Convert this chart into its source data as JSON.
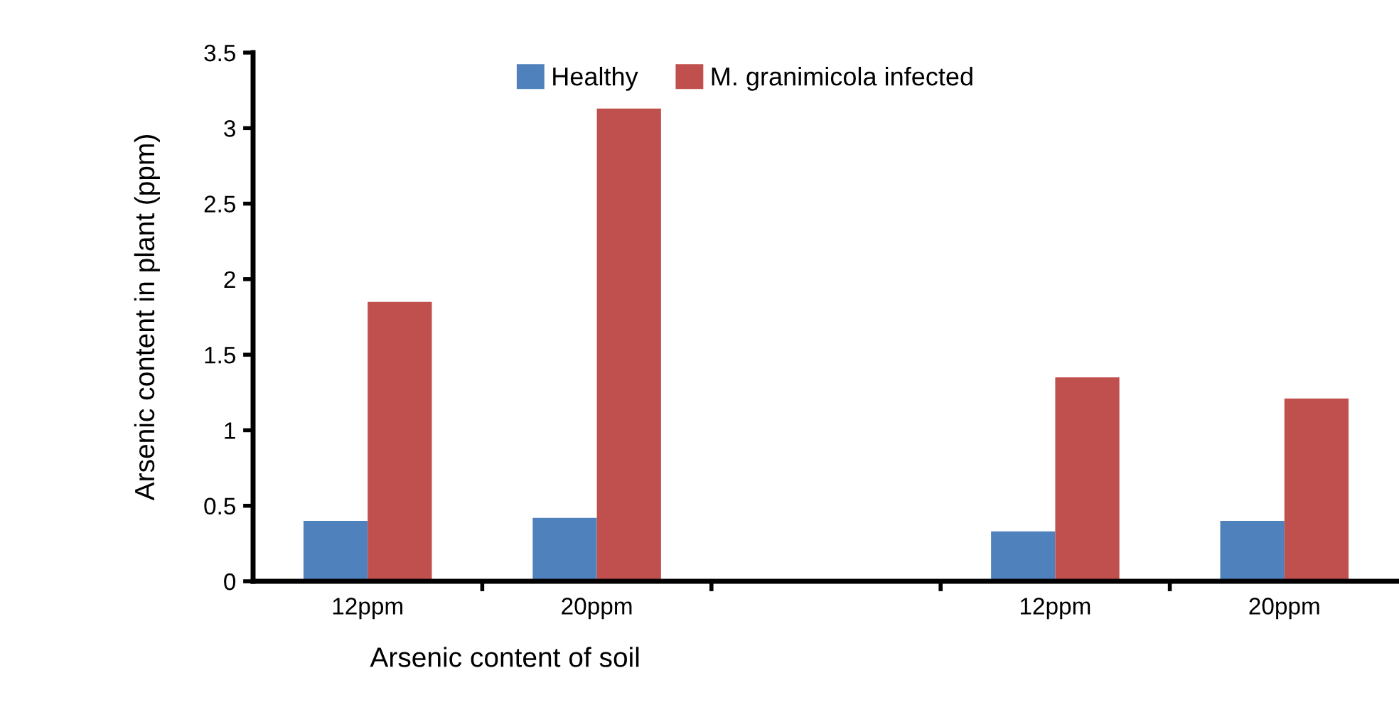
{
  "chart_data": {
    "type": "bar",
    "xlabel": "Arsenic content of soil",
    "ylabel": "Arsenic content in plant (ppm)",
    "categories": [
      "12ppm",
      "20ppm",
      null,
      "12ppm",
      "20ppm"
    ],
    "series": [
      {
        "name": "Healthy",
        "color": "#4f81bd",
        "values": [
          0.4,
          0.42,
          null,
          0.33,
          0.4
        ]
      },
      {
        "name": "M. granimicola infected",
        "color": "#c0504d",
        "values": [
          1.85,
          3.13,
          null,
          1.35,
          1.21
        ]
      }
    ],
    "ylim": [
      0,
      3.5
    ],
    "yticks": [
      0,
      0.5,
      1,
      1.5,
      2,
      2.5,
      3,
      3.5
    ],
    "grid": false,
    "legend": "top"
  }
}
